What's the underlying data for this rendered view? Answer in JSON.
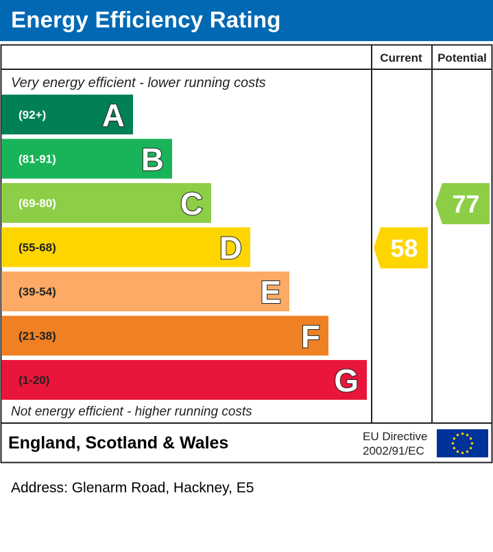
{
  "header": {
    "title": "Energy Efficiency Rating"
  },
  "columns": {
    "current": "Current",
    "potential": "Potential"
  },
  "top_note": "Very energy efficient - lower running costs",
  "bottom_note": "Not energy efficient - higher running costs",
  "footer": {
    "region": "England, Scotland & Wales",
    "directive_line1": "EU Directive",
    "directive_line2": "2002/91/EC",
    "flag_icon": "eu-flag-icon"
  },
  "address": "Address: Glenarm Road, Hackney, E5",
  "chart_data": {
    "type": "bar",
    "bands": [
      {
        "letter": "A",
        "range": "(92+)",
        "min": 92,
        "max": 100,
        "color": "#008054"
      },
      {
        "letter": "B",
        "range": "(81-91)",
        "min": 81,
        "max": 91,
        "color": "#19b459"
      },
      {
        "letter": "C",
        "range": "(69-80)",
        "min": 69,
        "max": 80,
        "color": "#8dce46"
      },
      {
        "letter": "D",
        "range": "(55-68)",
        "min": 55,
        "max": 68,
        "color": "#ffd500"
      },
      {
        "letter": "E",
        "range": "(39-54)",
        "min": 39,
        "max": 54,
        "color": "#fcaa65"
      },
      {
        "letter": "F",
        "range": "(21-38)",
        "min": 21,
        "max": 38,
        "color": "#ef8023"
      },
      {
        "letter": "G",
        "range": "(1-20)",
        "min": 1,
        "max": 20,
        "color": "#e9153b"
      }
    ],
    "current": {
      "value": 58,
      "label": "58",
      "band": "D",
      "color": "#ffd500"
    },
    "potential": {
      "value": 77,
      "label": "77",
      "band": "C",
      "color": "#8dce46"
    }
  }
}
